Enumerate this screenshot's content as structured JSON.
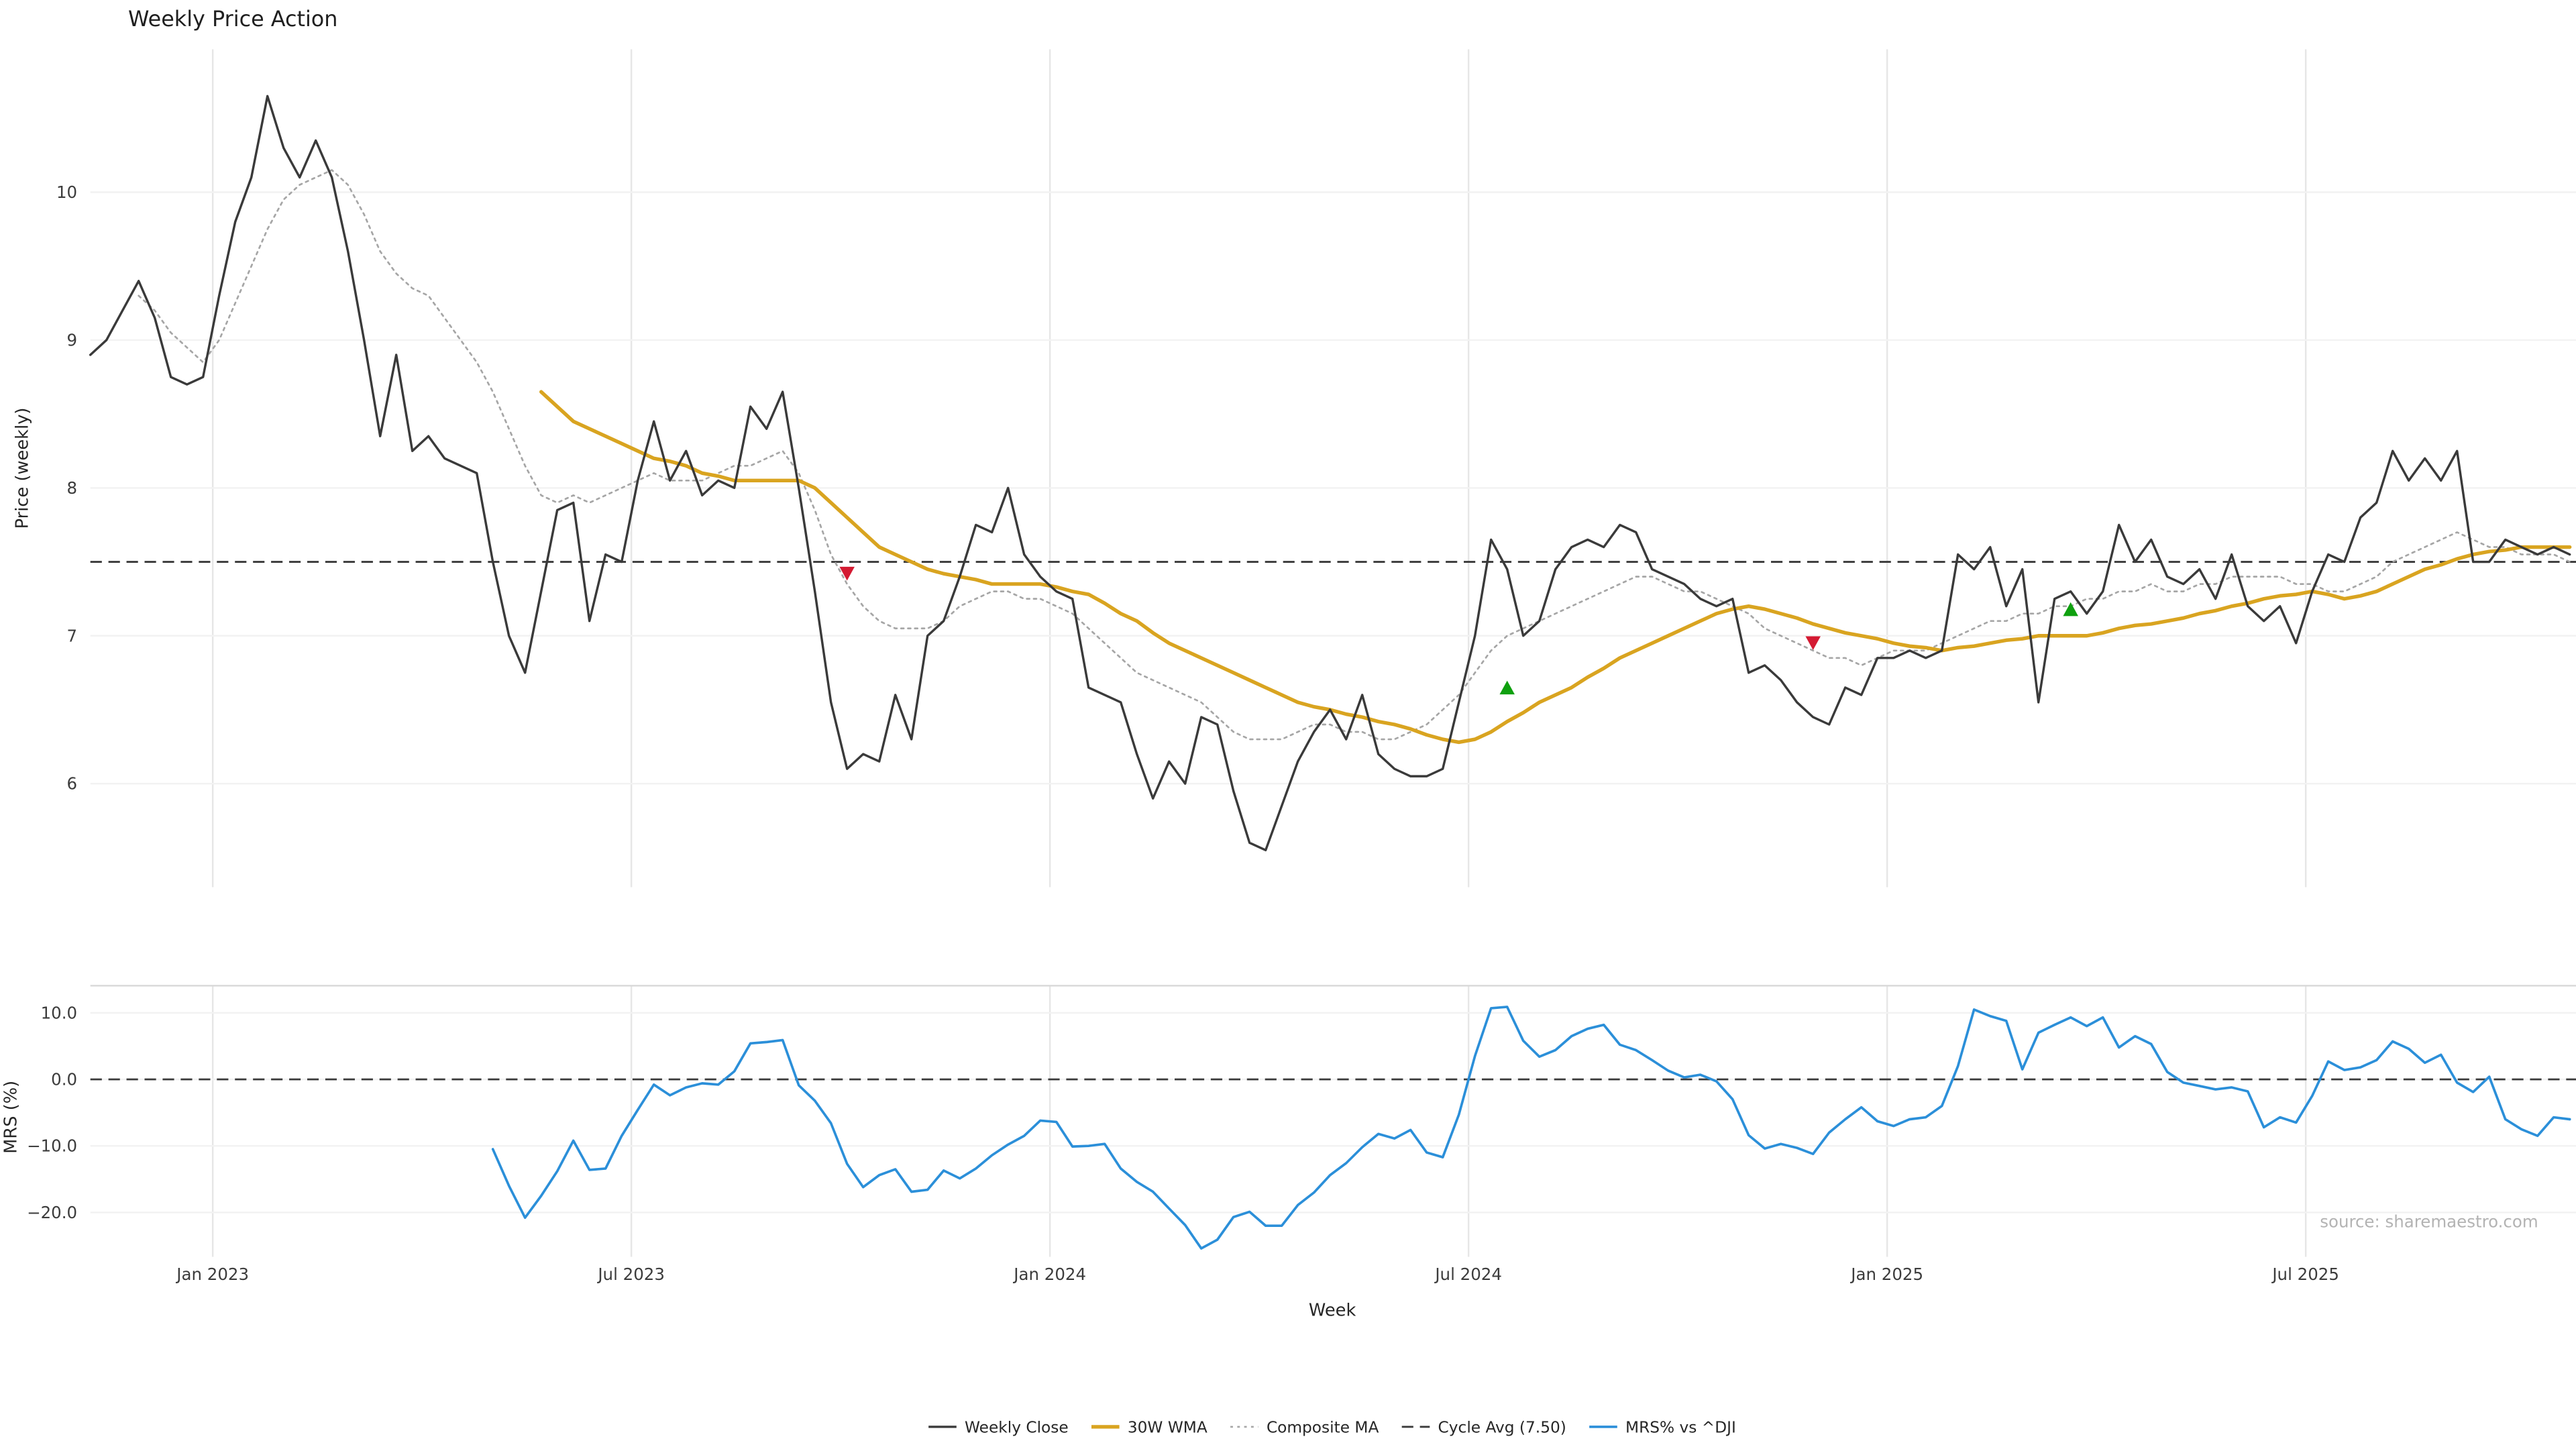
{
  "title": "Weekly Price Action",
  "source_credit": "source: sharemaestro.com",
  "chart_data": {
    "type": "line",
    "title": "Weekly Price Action",
    "xlabel": "Week",
    "x_tick_labels": [
      "Jan 2023",
      "Jul 2023",
      "Jan 2024",
      "Jul 2024",
      "Jan 2025",
      "Jul 2025"
    ],
    "x_tick_weeks": [
      7.6,
      33.6,
      59.6,
      85.6,
      111.6,
      137.6
    ],
    "weeks_total": 155,
    "grid": true,
    "legend_position": "bottom-center",
    "panels": [
      {
        "name": "price",
        "ylabel": "Price (weekly)",
        "ylim": [
          5.3,
          10.97
        ],
        "yticks": [
          6,
          7,
          8,
          9,
          10
        ],
        "reference_line": {
          "label": "Cycle Avg (7.50)",
          "value": 7.5,
          "color": "#3a3a3a",
          "style": "dashed"
        },
        "series": [
          {
            "role": "close",
            "name": "Weekly Close",
            "color": "#3a3a3a",
            "style": "solid",
            "start_week": 0,
            "values": [
              8.9,
              9.0,
              9.2,
              9.4,
              9.15,
              8.75,
              8.7,
              8.75,
              9.3,
              9.8,
              10.1,
              10.65,
              10.3,
              10.1,
              10.35,
              10.1,
              9.6,
              9.0,
              8.35,
              8.9,
              8.25,
              8.35,
              8.2,
              8.15,
              8.1,
              7.5,
              7.0,
              6.75,
              7.3,
              7.85,
              7.9,
              7.1,
              7.55,
              7.5,
              8.05,
              8.45,
              8.05,
              8.25,
              7.95,
              8.05,
              8.0,
              8.55,
              8.4,
              8.65,
              8.0,
              7.3,
              6.55,
              6.1,
              6.2,
              6.15,
              6.6,
              6.3,
              7.0,
              7.1,
              7.4,
              7.75,
              7.7,
              8.0,
              7.55,
              7.4,
              7.3,
              7.25,
              6.65,
              6.6,
              6.55,
              6.2,
              5.9,
              6.15,
              6.0,
              6.45,
              6.4,
              5.95,
              5.6,
              5.55,
              5.85,
              6.15,
              6.35,
              6.5,
              6.3,
              6.6,
              6.2,
              6.1,
              6.05,
              6.05,
              6.1,
              6.55,
              7.0,
              7.65,
              7.45,
              7.0,
              7.1,
              7.45,
              7.6,
              7.65,
              7.6,
              7.75,
              7.7,
              7.45,
              7.4,
              7.35,
              7.25,
              7.2,
              7.25,
              6.75,
              6.8,
              6.7,
              6.55,
              6.45,
              6.4,
              6.65,
              6.6,
              6.85,
              6.85,
              6.9,
              6.85,
              6.9,
              7.55,
              7.45,
              7.6,
              7.2,
              7.45,
              6.55,
              7.25,
              7.3,
              7.15,
              7.3,
              7.75,
              7.5,
              7.65,
              7.4,
              7.35,
              7.45,
              7.25,
              7.55,
              7.2,
              7.1,
              7.2,
              6.95,
              7.3,
              7.55,
              7.5,
              7.8,
              7.9,
              8.25,
              8.05,
              8.2,
              8.05,
              8.25,
              7.5,
              7.5,
              7.65,
              7.6,
              7.55,
              7.6,
              7.55
            ]
          },
          {
            "role": "composite",
            "name": "Composite MA",
            "color": "#a6a6a6",
            "style": "dotted",
            "start_week": 3,
            "values": [
              9.3,
              9.2,
              9.05,
              8.95,
              8.85,
              9.0,
              9.25,
              9.5,
              9.75,
              9.95,
              10.05,
              10.1,
              10.15,
              10.05,
              9.85,
              9.6,
              9.45,
              9.35,
              9.3,
              9.15,
              9.0,
              8.85,
              8.65,
              8.4,
              8.15,
              7.95,
              7.9,
              7.95,
              7.9,
              7.95,
              8.0,
              8.05,
              8.1,
              8.05,
              8.05,
              8.05,
              8.1,
              8.15,
              8.15,
              8.2,
              8.25,
              8.1,
              7.85,
              7.55,
              7.35,
              7.2,
              7.1,
              7.05,
              7.05,
              7.05,
              7.1,
              7.2,
              7.25,
              7.3,
              7.3,
              7.25,
              7.25,
              7.2,
              7.15,
              7.05,
              6.95,
              6.85,
              6.75,
              6.7,
              6.65,
              6.6,
              6.55,
              6.45,
              6.35,
              6.3,
              6.3,
              6.3,
              6.35,
              6.4,
              6.4,
              6.35,
              6.35,
              6.3,
              6.3,
              6.35,
              6.4,
              6.5,
              6.6,
              6.75,
              6.9,
              7.0,
              7.05,
              7.1,
              7.15,
              7.2,
              7.25,
              7.3,
              7.35,
              7.4,
              7.4,
              7.35,
              7.3,
              7.3,
              7.25,
              7.2,
              7.15,
              7.05,
              7.0,
              6.95,
              6.9,
              6.85,
              6.85,
              6.8,
              6.85,
              6.9,
              6.9,
              6.9,
              6.95,
              7.0,
              7.05,
              7.1,
              7.1,
              7.15,
              7.15,
              7.2,
              7.2,
              7.25,
              7.25,
              7.3,
              7.3,
              7.35,
              7.3,
              7.3,
              7.35,
              7.35,
              7.4,
              7.4,
              7.4,
              7.4,
              7.35,
              7.35,
              7.3,
              7.3,
              7.35,
              7.4,
              7.5,
              7.55,
              7.6,
              7.65,
              7.7,
              7.65,
              7.6,
              7.6,
              7.55,
              7.55,
              7.55,
              7.5
            ]
          },
          {
            "role": "wma",
            "name": "30W WMA",
            "color": "#d9a420",
            "style": "solid",
            "start_week": 28,
            "values": [
              8.65,
              8.55,
              8.45,
              8.4,
              8.35,
              8.3,
              8.25,
              8.2,
              8.18,
              8.15,
              8.1,
              8.08,
              8.05,
              8.05,
              8.05,
              8.05,
              8.05,
              8.0,
              7.9,
              7.8,
              7.7,
              7.6,
              7.55,
              7.5,
              7.45,
              7.42,
              7.4,
              7.38,
              7.35,
              7.35,
              7.35,
              7.35,
              7.33,
              7.3,
              7.28,
              7.22,
              7.15,
              7.1,
              7.02,
              6.95,
              6.9,
              6.85,
              6.8,
              6.75,
              6.7,
              6.65,
              6.6,
              6.55,
              6.52,
              6.5,
              6.47,
              6.45,
              6.42,
              6.4,
              6.37,
              6.33,
              6.3,
              6.28,
              6.3,
              6.35,
              6.42,
              6.48,
              6.55,
              6.6,
              6.65,
              6.72,
              6.78,
              6.85,
              6.9,
              6.95,
              7.0,
              7.05,
              7.1,
              7.15,
              7.18,
              7.2,
              7.18,
              7.15,
              7.12,
              7.08,
              7.05,
              7.02,
              7.0,
              6.98,
              6.95,
              6.93,
              6.92,
              6.9,
              6.92,
              6.93,
              6.95,
              6.97,
              6.98,
              7.0,
              7.0,
              7.0,
              7.0,
              7.02,
              7.05,
              7.07,
              7.08,
              7.1,
              7.12,
              7.15,
              7.17,
              7.2,
              7.22,
              7.25,
              7.27,
              7.28,
              7.3,
              7.28,
              7.25,
              7.27,
              7.3,
              7.35,
              7.4,
              7.45,
              7.48,
              7.52,
              7.55,
              7.57,
              7.58,
              7.6,
              7.6,
              7.6,
              7.6
            ]
          }
        ],
        "markers": [
          {
            "role": "buy",
            "shape": "triangle-up",
            "color": "#0fa00f",
            "points": [
              {
                "week": 88,
                "price": 6.65
              },
              {
                "week": 123,
                "price": 7.18
              }
            ]
          },
          {
            "role": "sell",
            "shape": "triangle-down",
            "color": "#d41a32",
            "points": [
              {
                "week": 47,
                "price": 7.42
              },
              {
                "week": 107,
                "price": 6.95
              }
            ]
          }
        ]
      },
      {
        "name": "mrs",
        "ylabel": "MRS (%)",
        "ylim": [
          -26.7,
          14.1
        ],
        "yticks": [
          10.0,
          0.0,
          -10.0,
          -20.0
        ],
        "reference_line": {
          "label": "zero",
          "value": 0,
          "color": "#3a3a3a",
          "style": "dashed"
        },
        "series": [
          {
            "role": "mrs",
            "name": "MRS% vs ^DJI",
            "color": "#2b8fd9",
            "style": "solid",
            "start_week": 25,
            "values": [
              -10.5,
              -16,
              -20.8,
              -17.5,
              -13.8,
              -9.2,
              -13.6,
              -13.4,
              -8.5,
              -4.6,
              -0.8,
              -2.4,
              -1.2,
              -0.6,
              -0.8,
              1.2,
              5.4,
              5.6,
              5.9,
              -0.9,
              -3.2,
              -6.6,
              -12.7,
              -16.2,
              -14.4,
              -13.5,
              -16.9,
              -16.6,
              -13.7,
              -14.9,
              -13.4,
              -11.4,
              -9.8,
              -8.5,
              -6.2,
              -6.4,
              -10.1,
              -10,
              -9.7,
              -13.4,
              -15.4,
              -16.9,
              -19.4,
              -21.9,
              -25.4,
              -24.1,
              -20.7,
              -19.9,
              -22,
              -22,
              -18.9,
              -17,
              -14.4,
              -12.6,
              -10.2,
              -8.2,
              -8.9,
              -7.6,
              -11,
              -11.7,
              -5.3,
              3.5,
              10.7,
              10.9,
              5.8,
              3.4,
              4.4,
              6.5,
              7.6,
              8.2,
              5.2,
              4.4,
              2.9,
              1.3,
              0.3,
              0.7,
              -0.3,
              -3,
              -8.4,
              -10.4,
              -9.7,
              -10.3,
              -11.2,
              -8,
              -6,
              -4.2,
              -6.3,
              -7,
              -6,
              -5.7,
              -4,
              2,
              10.5,
              9.5,
              8.8,
              1.5,
              7,
              8.2,
              9.3,
              8,
              9.3,
              4.8,
              6.5,
              5.3,
              1.1,
              -0.5,
              -1,
              -1.5,
              -1.2,
              -1.8,
              -7.2,
              -5.7,
              -6.5,
              -2.5,
              2.7,
              1.4,
              1.8,
              2.9,
              5.7,
              4.6,
              2.5,
              3.7,
              -0.5,
              -1.9,
              0.4,
              -6,
              -7.5,
              -8.5,
              -5.7,
              -6
            ]
          }
        ]
      }
    ],
    "legend": [
      {
        "role": "close",
        "label": "Weekly Close",
        "color": "#3a3a3a",
        "style": "solid"
      },
      {
        "role": "wma",
        "label": "30W WMA",
        "color": "#d9a420",
        "style": "solid"
      },
      {
        "role": "composite",
        "label": "Composite MA",
        "color": "#a6a6a6",
        "style": "dotted"
      },
      {
        "role": "cycle",
        "label": "Cycle Avg (7.50)",
        "color": "#3a3a3a",
        "style": "dashed"
      },
      {
        "role": "mrs",
        "label": "MRS% vs ^DJI",
        "color": "#2b8fd9",
        "style": "solid"
      }
    ]
  }
}
